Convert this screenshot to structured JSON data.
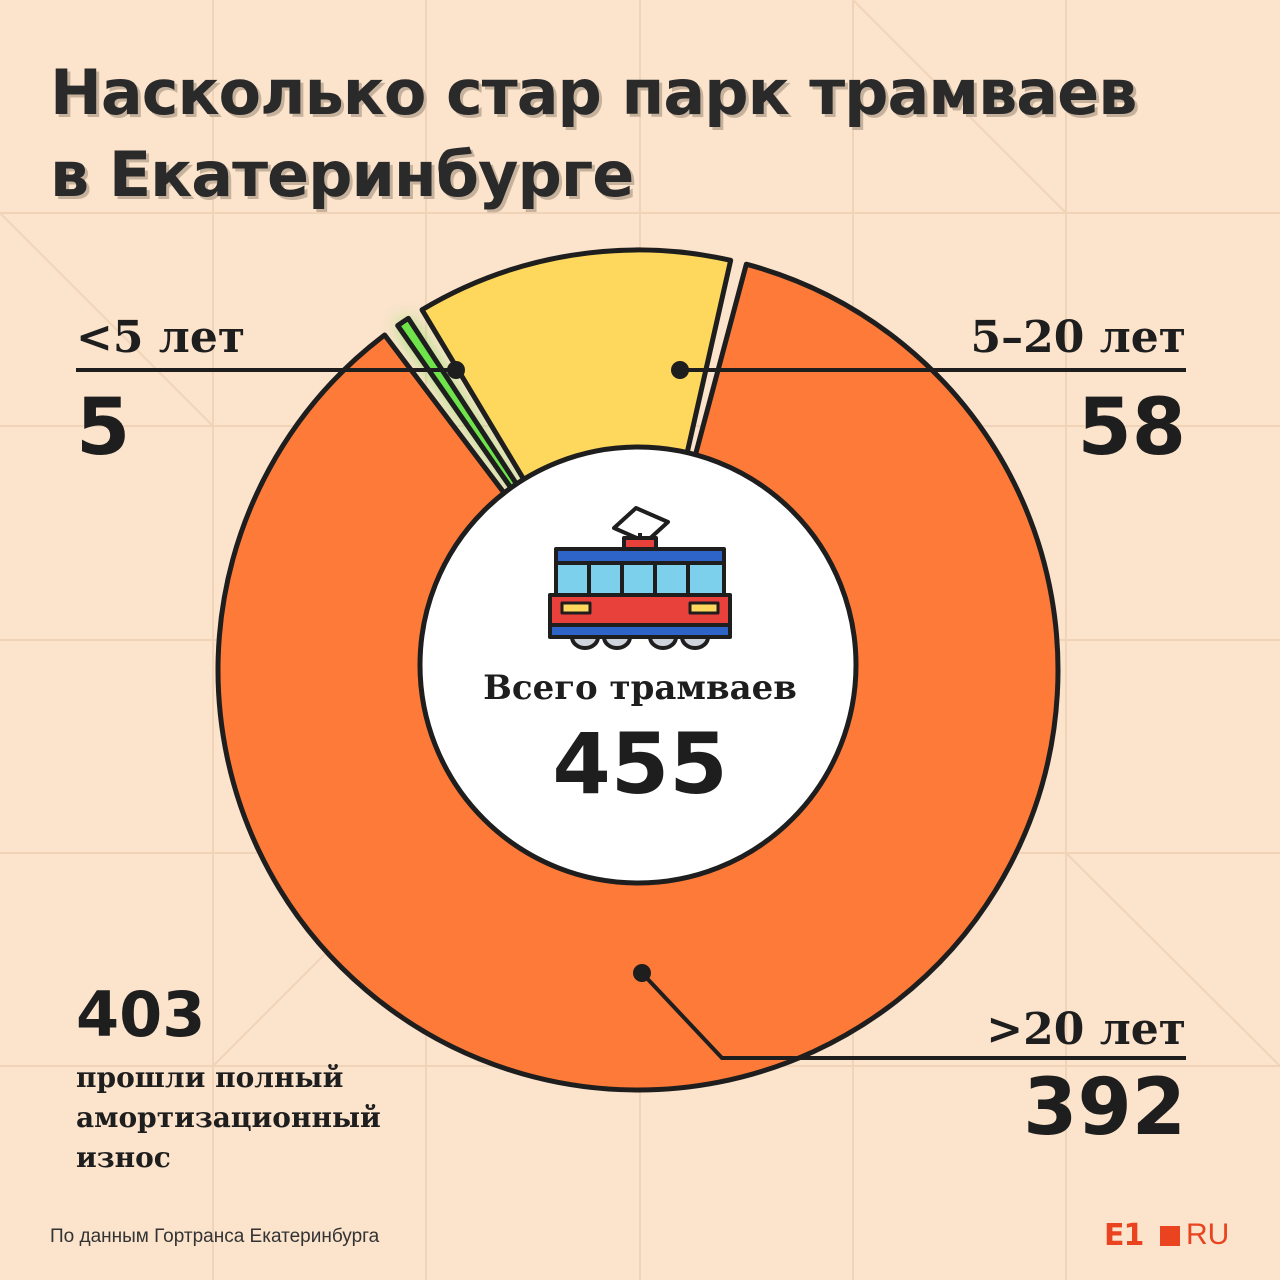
{
  "title": {
    "line1": "Насколько стар парк трамваев",
    "line2": "в Екатеринбурге"
  },
  "chart_data": {
    "type": "pie",
    "variant": "donut",
    "title": "Насколько стар парк трамваев в Екатеринбурге",
    "categories": [
      "<5 лет",
      "5–20 лет",
      ">20 лет"
    ],
    "values": [
      5,
      58,
      392
    ],
    "colors": [
      "#6ee44a",
      "#fdd85c",
      "#fd7a38"
    ],
    "total_label": "Всего трамваев",
    "total": 455
  },
  "labels": {
    "lt5": {
      "name": "<5 лет",
      "value": "5"
    },
    "mid": {
      "name": "5–20 лет",
      "value": "58"
    },
    "gt20": {
      "name": ">20 лет",
      "value": "392"
    }
  },
  "center": {
    "label": "Всего трамваев",
    "value": "455",
    "icon": "tram-icon"
  },
  "note": {
    "value": "403",
    "text": "прошли полный амортизационный износ"
  },
  "source": "По данным Гортранса Екатеринбурга",
  "logo": {
    "e1": "E1",
    "ru": "RU",
    "color": "#e9431f"
  },
  "colors": {
    "background": "#fbe3cc",
    "text": "#1e1e1e"
  }
}
